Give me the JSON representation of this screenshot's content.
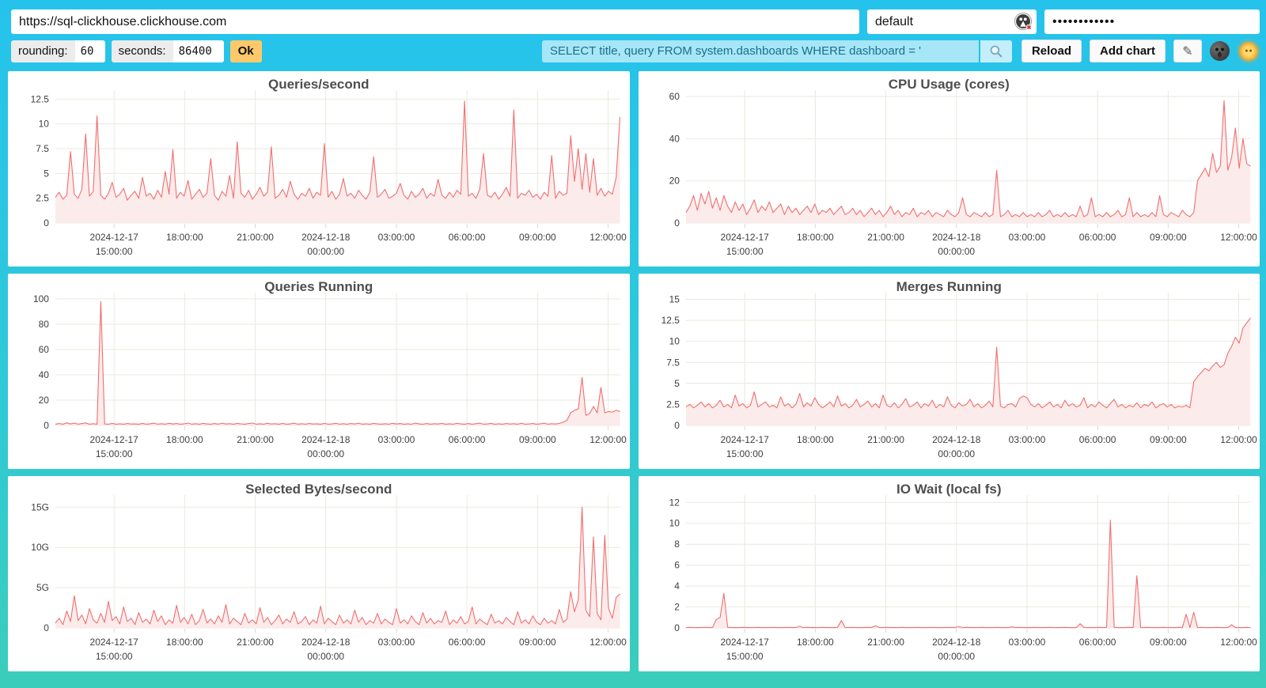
{
  "connection": {
    "url": "https://sql-clickhouse.clickhouse.com",
    "user": "default",
    "password_masked": "••••••••••••"
  },
  "controls": {
    "rounding_label": "rounding:",
    "rounding_value": "60",
    "seconds_label": "seconds:",
    "seconds_value": "86400",
    "ok_label": "Ok"
  },
  "query": {
    "text": "SELECT title, query FROM system.dashboards WHERE dashboard = '"
  },
  "actions": {
    "reload_label": "Reload",
    "add_chart_label": "Add chart"
  },
  "icons": {
    "search": "search-icon",
    "edit": "edit-pencil-icon",
    "dark_theme": "dark-theme-moon-icon",
    "light_theme": "light-theme-sun-icon",
    "user_status": "user-status-icon"
  },
  "colors": {
    "background_top": "#25C3EC",
    "background_bottom": "#3BCDBB",
    "card": "#FFFFFF",
    "line": "#F06F6F",
    "area_fill": "#FCEBEB",
    "grid": "#E9E9DF",
    "ok_button": "#FFC96B",
    "query_bg": "#A6E6F6",
    "query_text": "#1A6F8E",
    "title_text": "#4E4E4E"
  },
  "x_ticks": [
    {
      "pos": 0.104,
      "lines": [
        "2024-12-17",
        "15:00:00"
      ]
    },
    {
      "pos": 0.229,
      "lines": [
        "18:00:00"
      ]
    },
    {
      "pos": 0.354,
      "lines": [
        "21:00:00"
      ]
    },
    {
      "pos": 0.479,
      "lines": [
        "2024-12-18",
        "00:00:00"
      ]
    },
    {
      "pos": 0.604,
      "lines": [
        "03:00:00"
      ]
    },
    {
      "pos": 0.729,
      "lines": [
        "06:00:00"
      ]
    },
    {
      "pos": 0.854,
      "lines": [
        "09:00:00"
      ]
    },
    {
      "pos": 0.979,
      "lines": [
        "12:00:00"
      ]
    }
  ],
  "chart_data": {
    "note": "see charts[] — six time-series line charts over 24h window 2024-12-17 ~12:30 to 2024-12-18 ~12:30"
  },
  "charts": [
    {
      "type": "line",
      "title": "Queries/second",
      "ymax": 13.4,
      "y_ticks": [
        {
          "v": 0,
          "label": "0"
        },
        {
          "v": 2.5,
          "label": "2.5"
        },
        {
          "v": 5,
          "label": "5"
        },
        {
          "v": 7.5,
          "label": "7.5"
        },
        {
          "v": 10,
          "label": "10"
        },
        {
          "v": 12.5,
          "label": "12.5"
        }
      ],
      "values": [
        2.6,
        3.1,
        2.4,
        2.8,
        7.2,
        2.9,
        2.5,
        3.4,
        9.0,
        2.7,
        3.2,
        10.8,
        2.8,
        2.4,
        3.0,
        4.1,
        2.6,
        2.9,
        3.5,
        2.3,
        2.8,
        3.2,
        2.5,
        4.6,
        2.7,
        3.0,
        2.4,
        3.3,
        2.6,
        5.2,
        2.9,
        7.4,
        2.5,
        3.1,
        2.7,
        4.3,
        2.4,
        2.9,
        3.4,
        2.6,
        3.0,
        6.5,
        2.8,
        2.3,
        3.2,
        2.7,
        4.8,
        2.5,
        8.2,
        3.0,
        2.6,
        3.3,
        2.4,
        2.9,
        3.6,
        2.7,
        3.1,
        7.7,
        2.5,
        2.8,
        3.4,
        2.6,
        4.2,
        2.9,
        2.4,
        3.0,
        2.7,
        3.5,
        2.5,
        3.1,
        2.8,
        8.0,
        2.6,
        3.2,
        2.4,
        2.9,
        4.5,
        2.7,
        3.0,
        2.5,
        3.3,
        2.8,
        2.4,
        3.1,
        6.7,
        2.6,
        2.9,
        3.4,
        2.5,
        2.7,
        3.0,
        4.0,
        2.8,
        2.4,
        3.2,
        2.6,
        2.9,
        3.5,
        2.5,
        3.0,
        2.7,
        4.4,
        2.8,
        2.5,
        3.1,
        2.6,
        3.3,
        2.9,
        12.3,
        2.7,
        3.0,
        2.5,
        3.4,
        7.0,
        2.8,
        2.6,
        3.1,
        2.4,
        2.9,
        3.6,
        2.7,
        11.4,
        2.5,
        3.0,
        2.8,
        3.3,
        2.6,
        2.9,
        2.4,
        3.1,
        2.7,
        6.8,
        2.5,
        3.2,
        2.8,
        3.0,
        8.8,
        4.2,
        7.5,
        3.4,
        7.0,
        3.1,
        6.5,
        2.8,
        3.5,
        2.7,
        3.2,
        2.9,
        4.6,
        10.7
      ]
    },
    {
      "type": "line",
      "title": "CPU Usage (cores)",
      "ymax": 63,
      "y_ticks": [
        {
          "v": 0,
          "label": "0"
        },
        {
          "v": 20,
          "label": "20"
        },
        {
          "v": 40,
          "label": "40"
        },
        {
          "v": 60,
          "label": "60"
        }
      ],
      "values": [
        5,
        8,
        13,
        6,
        14,
        9,
        15,
        7,
        12,
        6,
        13,
        8,
        5,
        10,
        6,
        9,
        4,
        7,
        11,
        5,
        8,
        6,
        10,
        5,
        7,
        9,
        4,
        8,
        5,
        7,
        4,
        6,
        8,
        5,
        9,
        4,
        6,
        5,
        7,
        4,
        6,
        8,
        4,
        5,
        7,
        4,
        6,
        3,
        5,
        7,
        4,
        6,
        3,
        5,
        8,
        4,
        6,
        3,
        5,
        4,
        7,
        3,
        5,
        4,
        6,
        3,
        5,
        4,
        3,
        6,
        4,
        3,
        5,
        12,
        4,
        3,
        5,
        4,
        3,
        5,
        3,
        4,
        25,
        3,
        4,
        6,
        3,
        4,
        3,
        5,
        3,
        4,
        3,
        5,
        3,
        4,
        6,
        3,
        4,
        3,
        5,
        3,
        4,
        3,
        8,
        3,
        4,
        12,
        3,
        4,
        3,
        5,
        3,
        4,
        6,
        3,
        4,
        12,
        3,
        5,
        3,
        4,
        3,
        5,
        3,
        13,
        4,
        3,
        5,
        4,
        3,
        6,
        4,
        3,
        5,
        20,
        23,
        26,
        22,
        33,
        24,
        27,
        58,
        25,
        31,
        45,
        26,
        40,
        28,
        27
      ]
    },
    {
      "type": "line",
      "title": "Queries Running",
      "ymax": 105,
      "y_ticks": [
        {
          "v": 0,
          "label": "0"
        },
        {
          "v": 20,
          "label": "20"
        },
        {
          "v": 40,
          "label": "40"
        },
        {
          "v": 60,
          "label": "60"
        },
        {
          "v": 80,
          "label": "80"
        },
        {
          "v": 100,
          "label": "100"
        }
      ],
      "values": [
        1,
        1.5,
        1,
        2,
        1.2,
        1.8,
        1,
        1.5,
        2,
        1,
        1.4,
        1,
        98,
        1.2,
        1,
        1.6,
        1,
        1.3,
        1,
        1.5,
        1.1,
        1.2,
        1,
        1.6,
        1,
        1.3,
        1.8,
        1,
        1.4,
        1,
        1.7,
        1.1,
        1.5,
        1,
        1.3,
        1.9,
        1,
        1.4,
        1,
        1.6,
        1.2,
        1,
        1.5,
        1,
        1.8,
        1.1,
        1.4,
        1,
        1.6,
        1.2,
        1,
        1.5,
        1.9,
        1,
        1.3,
        1,
        1.7,
        1.1,
        1.4,
        1,
        1.6,
        1,
        1.2,
        1.8,
        1,
        1.4,
        1,
        1.5,
        1.1,
        1.3,
        1,
        1.6,
        1,
        1.2,
        1.7,
        1,
        1.4,
        1,
        1.5,
        1.1,
        1.8,
        1,
        1.3,
        1,
        1.6,
        1.2,
        1,
        1.4,
        1,
        1.7,
        1.1,
        1.5,
        1,
        1.3,
        1,
        1.8,
        1.2,
        1,
        1.5,
        1,
        1.4,
        1.1,
        1.6,
        1,
        1.3,
        1,
        1.7,
        1.2,
        1,
        1.5,
        1,
        1.4,
        1.8,
        1,
        1.2,
        1.6,
        1,
        1.3,
        1,
        1.5,
        1.1,
        1.4,
        1,
        1.7,
        1,
        1.2,
        1.5,
        1,
        1.3,
        1.8,
        1,
        1.4,
        1.1,
        1.6,
        2.5,
        4,
        10,
        12,
        13,
        38,
        8,
        9.5,
        15,
        10,
        30,
        10,
        11,
        10.5,
        12,
        11
      ]
    },
    {
      "type": "line",
      "title": "Merges Running",
      "ymax": 15.8,
      "y_ticks": [
        {
          "v": 0,
          "label": "0"
        },
        {
          "v": 2.5,
          "label": "2.5"
        },
        {
          "v": 5,
          "label": "5"
        },
        {
          "v": 7.5,
          "label": "7.5"
        },
        {
          "v": 10,
          "label": "10"
        },
        {
          "v": 12.5,
          "label": "12.5"
        },
        {
          "v": 15,
          "label": "15"
        }
      ],
      "values": [
        2.2,
        2.5,
        2.1,
        2.4,
        2.8,
        2.2,
        2.6,
        2.1,
        2.4,
        3.0,
        2.2,
        2.5,
        2.1,
        3.6,
        2.3,
        2.6,
        2.1,
        2.4,
        4.0,
        2.2,
        2.5,
        2.8,
        2.2,
        2.4,
        2.1,
        3.4,
        2.3,
        2.6,
        2.1,
        2.5,
        3.8,
        2.2,
        2.7,
        2.3,
        3.3,
        2.5,
        2.1,
        2.4,
        2.8,
        2.2,
        3.5,
        2.3,
        2.6,
        2.1,
        2.4,
        3.1,
        2.2,
        2.5,
        2.9,
        2.2,
        2.6,
        2.1,
        3.6,
        2.4,
        2.2,
        2.7,
        2.1,
        2.5,
        3.2,
        2.2,
        2.4,
        2.8,
        2.1,
        2.6,
        2.3,
        3.0,
        2.1,
        2.5,
        2.2,
        3.4,
        2.4,
        2.1,
        2.7,
        2.3,
        2.5,
        3.1,
        2.2,
        2.6,
        2.1,
        2.4,
        2.9,
        2.2,
        9.3,
        2.3,
        2.1,
        2.5,
        2.6,
        2.2,
        3.2,
        3.5,
        3.3,
        2.5,
        2.2,
        2.6,
        2.1,
        2.4,
        2.8,
        2.2,
        2.5,
        2.1,
        3.0,
        2.3,
        2.6,
        2.2,
        2.4,
        3.3,
        2.1,
        2.5,
        2.2,
        2.8,
        2.4,
        2.1,
        2.6,
        3.1,
        2.2,
        2.5,
        2.1,
        2.4,
        2.2,
        2.7,
        2.1,
        2.5,
        2.3,
        2.8,
        2.1,
        2.4,
        2.6,
        2.2,
        2.5,
        2.1,
        2.3,
        2.2,
        2.4,
        2.1,
        5.2,
        5.8,
        6.3,
        6.8,
        6.5,
        7.1,
        7.5,
        6.9,
        7.2,
        8.6,
        9.4,
        10.5,
        9.8,
        11.6,
        12.2,
        12.8
      ]
    },
    {
      "type": "line",
      "title": "Selected Bytes/second",
      "ymax": 16.5,
      "y_ticks": [
        {
          "v": 0,
          "label": "0"
        },
        {
          "v": 5,
          "label": "5G"
        },
        {
          "v": 10,
          "label": "10G"
        },
        {
          "v": 15,
          "label": "15G"
        }
      ],
      "values": [
        0.6,
        1.2,
        0.4,
        2.1,
        0.8,
        4.0,
        0.9,
        1.6,
        0.5,
        2.4,
        1.0,
        0.6,
        1.8,
        0.7,
        3.3,
        0.9,
        1.4,
        0.5,
        2.6,
        0.8,
        1.2,
        0.4,
        1.9,
        0.7,
        1.1,
        0.5,
        2.2,
        0.8,
        1.5,
        0.4,
        1.0,
        0.6,
        2.8,
        0.7,
        1.3,
        0.5,
        1.7,
        0.4,
        0.9,
        2.3,
        0.6,
        1.1,
        0.5,
        1.5,
        0.7,
        2.9,
        0.5,
        1.2,
        0.8,
        0.4,
        1.8,
        0.6,
        1.0,
        0.5,
        2.5,
        0.7,
        1.3,
        0.4,
        0.9,
        1.6,
        0.5,
        1.1,
        0.7,
        2.0,
        0.5,
        0.8,
        1.4,
        0.4,
        1.0,
        0.6,
        2.7,
        0.5,
        1.2,
        0.8,
        0.4,
        1.6,
        0.6,
        1.0,
        0.5,
        2.2,
        0.7,
        1.3,
        0.4,
        0.9,
        0.6,
        1.8,
        0.5,
        1.1,
        0.7,
        0.4,
        2.4,
        0.6,
        1.0,
        0.5,
        1.5,
        0.8,
        0.4,
        1.9,
        0.6,
        1.2,
        0.5,
        0.9,
        0.7,
        2.1,
        0.4,
        1.0,
        0.6,
        1.4,
        0.5,
        0.8,
        2.6,
        0.5,
        1.1,
        0.7,
        0.4,
        1.7,
        0.6,
        0.9,
        0.5,
        1.3,
        0.8,
        0.4,
        2.0,
        0.6,
        1.0,
        0.5,
        1.5,
        0.7,
        0.4,
        1.2,
        0.6,
        0.9,
        0.5,
        2.3,
        0.7,
        1.1,
        4.5,
        2.0,
        3.5,
        15.0,
        2.2,
        1.4,
        11.3,
        1.8,
        1.0,
        11.5,
        2.4,
        1.2,
        3.8,
        4.2
      ]
    },
    {
      "type": "line",
      "title": "IO Wait (local fs)",
      "ymax": 12.7,
      "y_ticks": [
        {
          "v": 0,
          "label": "0"
        },
        {
          "v": 2,
          "label": "2"
        },
        {
          "v": 4,
          "label": "4"
        },
        {
          "v": 6,
          "label": "6"
        },
        {
          "v": 8,
          "label": "8"
        },
        {
          "v": 10,
          "label": "10"
        },
        {
          "v": 12,
          "label": "12"
        }
      ],
      "values": [
        0.03,
        0.05,
        0.03,
        0.04,
        0.03,
        0.05,
        0.03,
        0.04,
        0.8,
        1.0,
        3.3,
        0.05,
        0.03,
        0.04,
        0.03,
        0.05,
        0.03,
        0.04,
        0.03,
        0.05,
        0.03,
        0.04,
        0.03,
        0.05,
        0.03,
        0.04,
        0.03,
        0.05,
        0.03,
        0.04,
        0.15,
        0.03,
        0.05,
        0.03,
        0.04,
        0.03,
        0.05,
        0.03,
        0.04,
        0.03,
        0.05,
        0.7,
        0.04,
        0.03,
        0.05,
        0.03,
        0.04,
        0.03,
        0.05,
        0.03,
        0.2,
        0.04,
        0.03,
        0.05,
        0.03,
        0.04,
        0.03,
        0.05,
        0.03,
        0.04,
        0.03,
        0.05,
        0.03,
        0.04,
        0.03,
        0.05,
        0.03,
        0.04,
        0.03,
        0.05,
        0.03,
        0.04,
        0.12,
        0.03,
        0.05,
        0.03,
        0.04,
        0.03,
        0.05,
        0.03,
        0.04,
        0.03,
        0.05,
        0.03,
        0.04,
        0.03,
        0.1,
        0.03,
        0.05,
        0.03,
        0.04,
        0.03,
        0.05,
        0.03,
        0.04,
        0.03,
        0.05,
        0.03,
        0.04,
        0.03,
        0.05,
        0.03,
        0.04,
        0.03,
        0.4,
        0.05,
        0.03,
        0.04,
        0.03,
        0.05,
        0.03,
        0.04,
        10.3,
        0.05,
        0.03,
        0.04,
        0.03,
        0.05,
        0.03,
        5.0,
        0.04,
        0.03,
        0.05,
        0.03,
        0.04,
        0.03,
        0.05,
        0.03,
        0.04,
        0.03,
        0.05,
        0.03,
        1.3,
        0.04,
        1.5,
        0.03,
        0.05,
        0.03,
        0.04,
        0.03,
        0.05,
        0.03,
        0.04,
        0.03,
        0.3,
        0.03,
        0.04,
        0.03,
        0.05,
        0.04
      ]
    }
  ]
}
